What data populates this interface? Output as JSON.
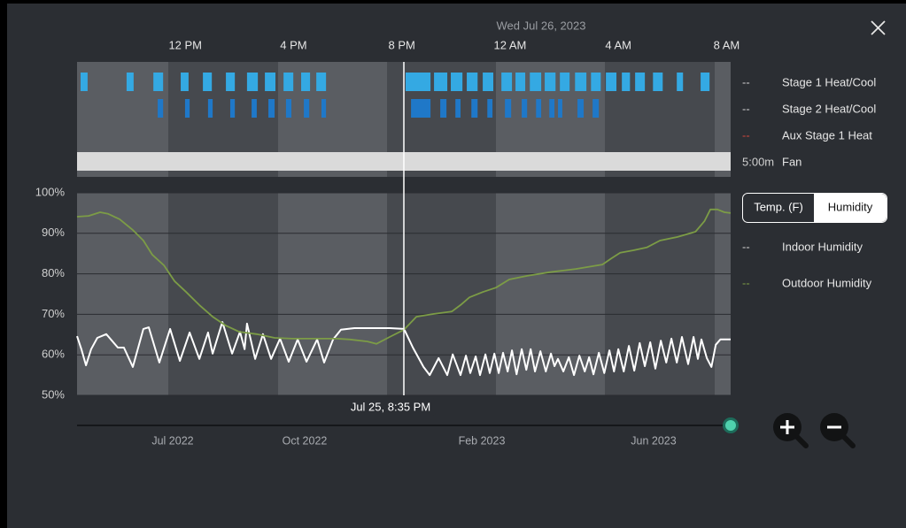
{
  "header": {
    "date": "Wed Jul 26, 2023"
  },
  "chart_data": [
    {
      "type": "timeline",
      "xlim": [
        8,
        32.15
      ],
      "xticks": [
        {
          "value": 12,
          "label": "12 PM"
        },
        {
          "value": 16,
          "label": "4 PM"
        },
        {
          "value": 20,
          "label": "8 PM"
        },
        {
          "value": 24,
          "label": "12 AM"
        },
        {
          "value": 28,
          "label": "4 AM"
        },
        {
          "value": 32,
          "label": "8 AM"
        }
      ],
      "rows": [
        {
          "name": "Stage 1 Heat/Cool",
          "status": "--",
          "color": "#34a9e3",
          "intervals": [
            [
              8.13,
              8.39
            ],
            [
              9.83,
              10.09
            ],
            [
              10.82,
              11.18
            ],
            [
              11.83,
              12.12
            ],
            [
              12.65,
              12.98
            ],
            [
              13.5,
              13.83
            ],
            [
              14.28,
              14.68
            ],
            [
              14.94,
              15.33
            ],
            [
              15.63,
              15.99
            ],
            [
              16.28,
              16.61
            ],
            [
              16.84,
              17.2
            ],
            [
              20.14,
              21.06
            ],
            [
              21.19,
              21.68
            ],
            [
              21.81,
              22.24
            ],
            [
              22.4,
              22.8
            ],
            [
              22.99,
              23.38
            ],
            [
              23.68,
              24.07
            ],
            [
              24.2,
              24.56
            ],
            [
              24.73,
              25.15
            ],
            [
              25.28,
              25.68
            ],
            [
              25.84,
              26.2
            ],
            [
              26.4,
              26.82
            ],
            [
              26.99,
              27.35
            ],
            [
              27.54,
              27.93
            ],
            [
              28.13,
              28.43
            ],
            [
              28.62,
              28.98
            ],
            [
              29.28,
              29.64
            ],
            [
              30.16,
              30.39
            ],
            [
              31.04,
              31.37
            ]
          ]
        },
        {
          "name": "Stage 2 Heat/Cool",
          "status": "--",
          "color": "#1f78c8",
          "intervals": [
            [
              10.98,
              11.18
            ],
            [
              11.99,
              12.16
            ],
            [
              12.84,
              13.01
            ],
            [
              13.66,
              13.83
            ],
            [
              14.45,
              14.64
            ],
            [
              15.07,
              15.3
            ],
            [
              15.72,
              15.92
            ],
            [
              16.38,
              16.58
            ],
            [
              17.03,
              17.2
            ],
            [
              20.34,
              21.06
            ],
            [
              21.42,
              21.65
            ],
            [
              21.98,
              22.17
            ],
            [
              22.57,
              22.8
            ],
            [
              23.16,
              23.35
            ],
            [
              23.81,
              24.04
            ],
            [
              24.43,
              24.63
            ],
            [
              24.96,
              25.15
            ],
            [
              25.45,
              25.64
            ],
            [
              25.77,
              25.93
            ],
            [
              26.49,
              26.72
            ],
            [
              27.05,
              27.28
            ]
          ]
        },
        {
          "name": "Aux Stage 1 Heat",
          "status": "--",
          "color": "#d0453c",
          "intervals": []
        },
        {
          "name": "Fan",
          "status": "5:00m",
          "color": "#dadada",
          "intervals": [
            [
              8,
              32.15
            ]
          ]
        }
      ]
    },
    {
      "type": "line",
      "xlim": [
        8,
        32.15
      ],
      "ylim": [
        50,
        100
      ],
      "yticks": [
        {
          "value": 50,
          "label": "50%"
        },
        {
          "value": 60,
          "label": "60%"
        },
        {
          "value": 70,
          "label": "70%"
        },
        {
          "value": 80,
          "label": "80%"
        },
        {
          "value": 90,
          "label": "90%"
        },
        {
          "value": 100,
          "label": "100%"
        }
      ],
      "grid": true,
      "series": [
        {
          "name": "Indoor Humidity",
          "status": "--",
          "color": "#ffffff",
          "x": [
            8.0,
            8.16,
            8.33,
            8.52,
            8.75,
            9.08,
            9.51,
            9.73,
            10.06,
            10.45,
            10.65,
            11.04,
            11.44,
            11.8,
            12.16,
            12.52,
            12.84,
            13.01,
            13.37,
            13.73,
            14.02,
            14.19,
            14.28,
            14.58,
            14.87,
            15.17,
            15.5,
            15.82,
            16.15,
            16.48,
            16.87,
            17.13,
            17.46,
            17.75,
            18.25,
            19.55,
            20.08,
            20.41,
            20.8,
            21.03,
            21.36,
            21.68,
            21.88,
            22.17,
            22.37,
            22.53,
            22.73,
            22.89,
            23.09,
            23.25,
            23.42,
            23.58,
            23.74,
            23.91,
            24.07,
            24.24,
            24.43,
            24.6,
            24.76,
            24.92,
            25.12,
            25.32,
            25.51,
            25.64,
            25.77,
            25.97,
            26.17,
            26.36,
            26.56,
            26.76,
            26.92,
            27.08,
            27.28,
            27.48,
            27.67,
            27.84,
            28.0,
            28.2,
            28.39,
            28.59,
            28.79,
            28.98,
            29.18,
            29.37,
            29.57,
            29.77,
            29.96,
            30.16,
            30.35,
            30.58,
            30.78,
            30.94,
            31.07,
            31.27,
            31.44,
            31.6,
            31.77,
            32.15
          ],
          "values": [
            64.6,
            61.4,
            57.4,
            61.4,
            64.2,
            65.1,
            61.8,
            61.8,
            57.0,
            66.4,
            66.8,
            58.1,
            66.4,
            58.5,
            65.5,
            59.0,
            65.5,
            60.3,
            68.1,
            60.3,
            65.7,
            61.4,
            67.7,
            59.0,
            65.1,
            59.0,
            64.0,
            58.3,
            63.8,
            58.3,
            63.8,
            58.1,
            63.8,
            66.2,
            66.6,
            66.6,
            66.4,
            61.8,
            57.0,
            55.0,
            59.2,
            55.0,
            60.1,
            55.0,
            59.8,
            55.5,
            59.6,
            55.0,
            60.1,
            55.5,
            60.3,
            55.5,
            60.5,
            55.9,
            61.1,
            55.2,
            61.4,
            56.3,
            61.4,
            55.9,
            60.9,
            55.9,
            60.3,
            57.2,
            59.0,
            55.9,
            59.4,
            55.0,
            59.8,
            55.9,
            59.4,
            55.2,
            60.5,
            55.5,
            61.1,
            55.9,
            61.4,
            55.9,
            62.2,
            56.1,
            62.9,
            57.2,
            63.1,
            56.6,
            63.5,
            58.1,
            64.0,
            58.1,
            64.4,
            57.7,
            64.4,
            59.0,
            63.8,
            59.2,
            57.0,
            62.5,
            63.8,
            63.8
          ]
        },
        {
          "name": "Outdoor Humidity",
          "status": "--",
          "color": "#7c9c46",
          "x": [
            8.0,
            8.43,
            8.85,
            9.15,
            9.57,
            10.06,
            10.45,
            10.78,
            11.21,
            11.6,
            12.03,
            12.52,
            13.01,
            13.5,
            13.99,
            14.64,
            15.3,
            15.95,
            17.59,
            18.08,
            18.73,
            19.06,
            19.55,
            20.08,
            20.54,
            21.19,
            21.85,
            22.17,
            22.5,
            22.99,
            23.48,
            23.97,
            24.63,
            25.45,
            26.43,
            27.41,
            27.74,
            28.07,
            28.56,
            29.05,
            29.54,
            30.19,
            30.85,
            31.18,
            31.4,
            31.66,
            31.92,
            32.15
          ],
          "values": [
            94.1,
            94.3,
            95.2,
            94.8,
            93.5,
            90.8,
            88.2,
            84.7,
            82.1,
            78.2,
            75.5,
            72.3,
            69.4,
            67.2,
            65.7,
            65.1,
            64.2,
            64.0,
            64.0,
            63.8,
            63.3,
            62.7,
            64.4,
            66.2,
            69.4,
            70.1,
            70.7,
            72.3,
            74.2,
            75.5,
            76.6,
            78.6,
            79.5,
            80.4,
            81.2,
            82.3,
            83.8,
            85.2,
            85.8,
            86.5,
            88.2,
            89.1,
            90.4,
            93.0,
            95.9,
            95.9,
            95.2,
            95.0
          ]
        }
      ]
    }
  ],
  "cursor_label": "Jul 25, 8:35 PM",
  "toggle": {
    "options": [
      "Temp. (F)",
      "Humidity"
    ],
    "selected": 1
  },
  "range_labels": [
    "Jul 2022",
    "Oct 2022",
    "Feb 2023",
    "Jun 2023"
  ]
}
